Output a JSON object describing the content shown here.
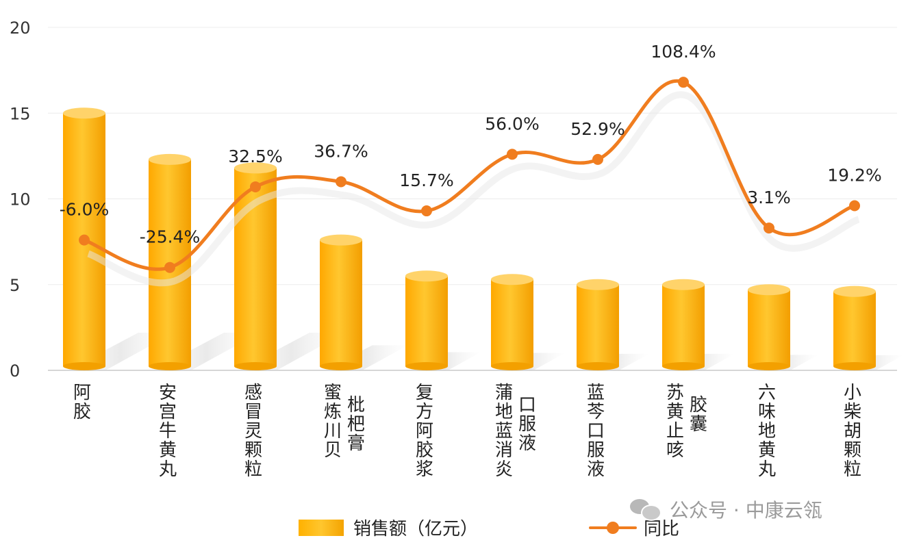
{
  "chart_data": {
    "type": "bar",
    "categories": [
      "阿胶",
      "安宫牛黄丸",
      "感冒灵颗粒",
      "蜜炼川贝枇杷膏",
      "复方阿胶浆",
      "蒲地蓝消炎口服液",
      "蓝芩口服液",
      "苏黄止咳胶囊",
      "六味地黄丸",
      "小柴胡颗粒"
    ],
    "category_lines": [
      [
        "阿胶"
      ],
      [
        "安宫牛黄丸"
      ],
      [
        "感冒灵颗粒"
      ],
      [
        "蜜炼川贝",
        "枇杷膏"
      ],
      [
        "复方阿胶浆"
      ],
      [
        "蒲地蓝消炎",
        "口服液"
      ],
      [
        "蓝芩口服液"
      ],
      [
        "苏黄止咳",
        "胶囊"
      ],
      [
        "六味地黄丸"
      ],
      [
        "小柴胡颗粒"
      ]
    ],
    "series": [
      {
        "name": "销售额（亿元）",
        "type": "bar",
        "values": [
          15.0,
          12.3,
          11.8,
          7.6,
          5.5,
          5.3,
          5.0,
          5.0,
          4.7,
          4.6
        ],
        "color": "#ffb300"
      },
      {
        "name": "同比",
        "type": "line",
        "values": [
          7.6,
          6.0,
          10.7,
          11.0,
          9.3,
          12.6,
          12.3,
          16.8,
          8.3,
          9.6
        ],
        "labels": [
          "-6.0%",
          "-25.4%",
          "32.5%",
          "36.7%",
          "15.7%",
          "56.0%",
          "52.9%",
          "108.4%",
          "3.1%",
          "19.2%"
        ],
        "color": "#f07d1f"
      }
    ],
    "yticks": [
      "0",
      "5",
      "10",
      "15",
      "20"
    ],
    "ylim": [
      0,
      20
    ],
    "grid": true,
    "legend": "bottom"
  },
  "watermark": "公众号 · 中康云瓴"
}
